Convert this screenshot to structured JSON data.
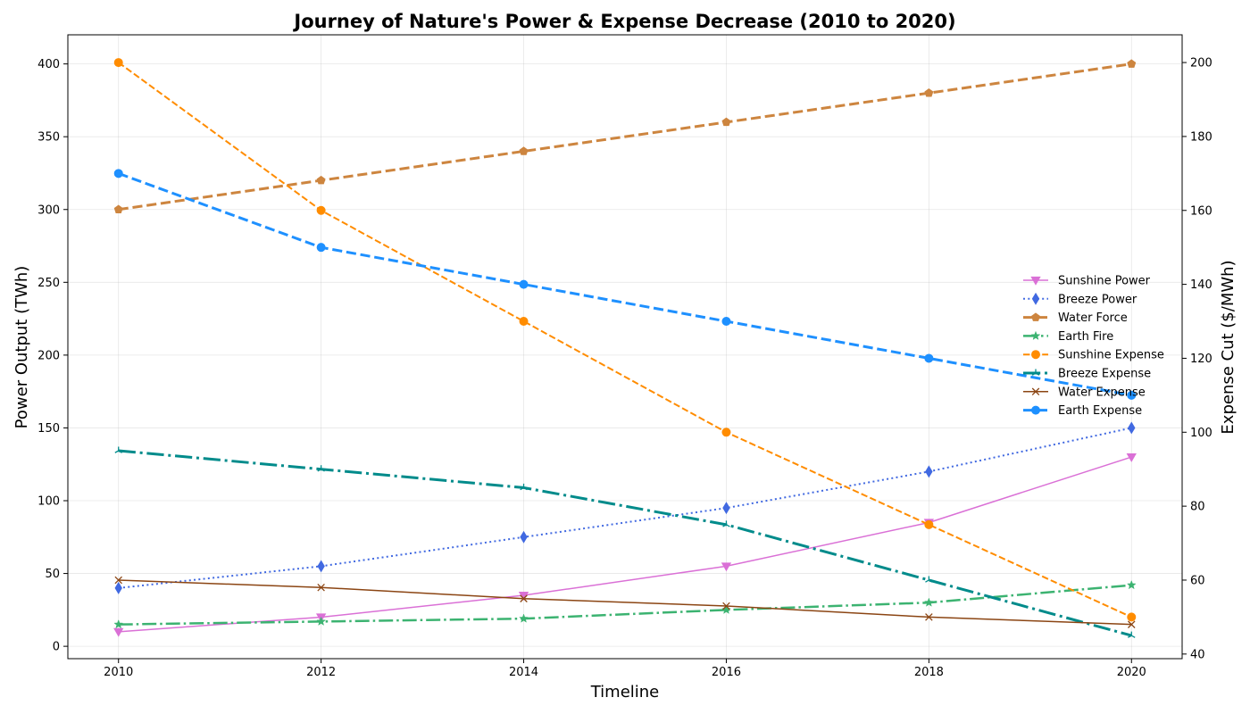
{
  "chart_data": {
    "type": "line",
    "title": "Journey of Nature's Power & Expense Decrease (2010 to 2020)",
    "xlabel": "Timeline",
    "ylabel_left": "Power Output (TWh)",
    "ylabel_right": "Expense Cut ($/MWh)",
    "ylabel_right_color": "#d62728",
    "x": [
      2010,
      2012,
      2014,
      2016,
      2018,
      2020
    ],
    "x_ticks": [
      "2010",
      "2012",
      "2014",
      "2016",
      "2018",
      "2020"
    ],
    "xlim": [
      2009.5,
      2020.5
    ],
    "ylim_left": [
      -8.5,
      420
    ],
    "ylim_right": [
      38.75,
      207.5
    ],
    "y_ticks_left": [
      "0",
      "50",
      "100",
      "150",
      "200",
      "250",
      "300",
      "350",
      "400"
    ],
    "y_ticks_right": [
      "40",
      "60",
      "80",
      "100",
      "120",
      "140",
      "160",
      "180",
      "200"
    ],
    "grid": true,
    "legend_position": "center-right",
    "series": [
      {
        "name": "Sunshine Power",
        "axis": "left",
        "values": [
          10,
          20,
          35,
          55,
          85,
          130
        ],
        "color": "#da70d6",
        "style": "solid",
        "width": 1.5,
        "marker": "triangle-down"
      },
      {
        "name": "Breeze Power",
        "axis": "left",
        "values": [
          40,
          55,
          75,
          95,
          120,
          150
        ],
        "color": "#4169e1",
        "style": "dotted",
        "width": 2,
        "marker": "thin-diamond"
      },
      {
        "name": "Water Force",
        "axis": "left",
        "values": [
          300,
          320,
          340,
          360,
          380,
          400
        ],
        "color": "#cd853f",
        "style": "dashed",
        "width": 3,
        "marker": "pentagon"
      },
      {
        "name": "Earth Fire",
        "axis": "left",
        "values": [
          15,
          17,
          19,
          25,
          30,
          42
        ],
        "color": "#3cb371",
        "style": "dashdot",
        "width": 2.5,
        "marker": "star"
      },
      {
        "name": "Sunshine Expense",
        "axis": "right",
        "values": [
          200,
          160,
          130,
          100,
          75,
          50
        ],
        "color": "#ff8c00",
        "style": "dashed",
        "width": 2,
        "marker": "circle"
      },
      {
        "name": "Breeze Expense",
        "axis": "right",
        "values": [
          95,
          90,
          85,
          75,
          60,
          45
        ],
        "color": "#008b8b",
        "style": "dashdot",
        "width": 3,
        "marker": "tri-up"
      },
      {
        "name": "Water Expense",
        "axis": "right",
        "values": [
          60,
          58,
          55,
          53,
          50,
          48
        ],
        "color": "#8b4513",
        "style": "solid",
        "width": 1.5,
        "marker": "x"
      },
      {
        "name": "Earth Expense",
        "axis": "right",
        "values": [
          170,
          150,
          140,
          130,
          120,
          110
        ],
        "color": "#1e90ff",
        "style": "dashed",
        "width": 3,
        "marker": "circle"
      }
    ]
  }
}
